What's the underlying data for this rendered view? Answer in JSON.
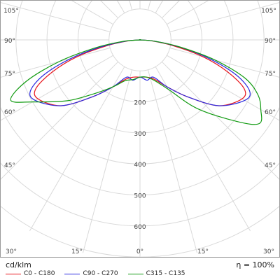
{
  "chart_data": {
    "type": "polar",
    "unit": "cd/klm",
    "efficiency": "η = 100%",
    "angle_labels": [
      {
        "text": "105°",
        "deg": 105
      },
      {
        "text": "105°",
        "deg": -105
      },
      {
        "text": "90°",
        "deg": 90
      },
      {
        "text": "90°",
        "deg": -90
      },
      {
        "text": "75°",
        "deg": 75
      },
      {
        "text": "75°",
        "deg": -75
      },
      {
        "text": "60°",
        "deg": 60
      },
      {
        "text": "60°",
        "deg": -60
      },
      {
        "text": "45°",
        "deg": 45
      },
      {
        "text": "45°",
        "deg": -45
      },
      {
        "text": "30°",
        "deg": 30
      },
      {
        "text": "30°",
        "deg": -30
      },
      {
        "text": "15°",
        "deg": 15
      },
      {
        "text": "15°",
        "deg": -15
      },
      {
        "text": "0°",
        "deg": 0
      }
    ],
    "radial_labels": [
      "200",
      "300",
      "400",
      "500",
      "600"
    ],
    "radial_values": [
      200,
      300,
      400,
      500,
      600
    ],
    "radial_max": 700,
    "series": [
      {
        "name": "C0 - C180",
        "color": "#e8141b",
        "points": [
          [
            0,
            120
          ],
          [
            10,
            122
          ],
          [
            20,
            135
          ],
          [
            30,
            175
          ],
          [
            40,
            240
          ],
          [
            50,
            330
          ],
          [
            60,
            380
          ],
          [
            65,
            370
          ],
          [
            70,
            300
          ],
          [
            75,
            210
          ],
          [
            80,
            110
          ],
          [
            85,
            40
          ],
          [
            90,
            0
          ],
          [
            -10,
            122
          ],
          [
            -20,
            135
          ],
          [
            -30,
            175
          ],
          [
            -40,
            240
          ],
          [
            -50,
            330
          ],
          [
            -60,
            380
          ],
          [
            -65,
            370
          ],
          [
            -70,
            300
          ],
          [
            -75,
            210
          ],
          [
            -80,
            110
          ],
          [
            -85,
            40
          ],
          [
            -90,
            0
          ]
        ]
      },
      {
        "name": "C90 - C270",
        "color": "#2a2adf",
        "points": [
          [
            0,
            120
          ],
          [
            10,
            132
          ],
          [
            20,
            128
          ],
          [
            30,
            175
          ],
          [
            40,
            240
          ],
          [
            50,
            330
          ],
          [
            60,
            390
          ],
          [
            65,
            390
          ],
          [
            70,
            330
          ],
          [
            75,
            230
          ],
          [
            80,
            125
          ],
          [
            85,
            45
          ],
          [
            90,
            0
          ],
          [
            -10,
            132
          ],
          [
            -20,
            128
          ],
          [
            -30,
            175
          ],
          [
            -40,
            240
          ],
          [
            -50,
            330
          ],
          [
            -60,
            390
          ],
          [
            -65,
            390
          ],
          [
            -70,
            330
          ],
          [
            -75,
            230
          ],
          [
            -80,
            125
          ],
          [
            -85,
            45
          ],
          [
            -90,
            0
          ]
        ]
      },
      {
        "name": "C315 - C135",
        "color": "#109a10",
        "points": [
          [
            0,
            120
          ],
          [
            10,
            122
          ],
          [
            20,
            140
          ],
          [
            30,
            185
          ],
          [
            40,
            290
          ],
          [
            50,
            410
          ],
          [
            55,
            470
          ],
          [
            60,
            450
          ],
          [
            65,
            420
          ],
          [
            70,
            360
          ],
          [
            75,
            250
          ],
          [
            80,
            130
          ],
          [
            85,
            45
          ],
          [
            90,
            0
          ],
          [
            -10,
            130
          ],
          [
            -20,
            140
          ],
          [
            -30,
            175
          ],
          [
            -40,
            225
          ],
          [
            -50,
            305
          ],
          [
            -60,
            400
          ],
          [
            -65,
            460
          ],
          [
            -70,
            390
          ],
          [
            -75,
            270
          ],
          [
            -80,
            145
          ],
          [
            -85,
            55
          ],
          [
            -90,
            0
          ]
        ]
      }
    ]
  }
}
